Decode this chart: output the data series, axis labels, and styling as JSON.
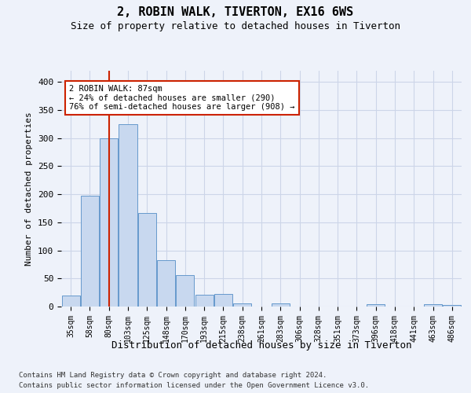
{
  "title1": "2, ROBIN WALK, TIVERTON, EX16 6WS",
  "title2": "Size of property relative to detached houses in Tiverton",
  "xlabel": "Distribution of detached houses by size in Tiverton",
  "ylabel": "Number of detached properties",
  "footnote1": "Contains HM Land Registry data © Crown copyright and database right 2024.",
  "footnote2": "Contains public sector information licensed under the Open Government Licence v3.0.",
  "categories": [
    "35sqm",
    "58sqm",
    "80sqm",
    "103sqm",
    "125sqm",
    "148sqm",
    "170sqm",
    "193sqm",
    "215sqm",
    "238sqm",
    "261sqm",
    "283sqm",
    "306sqm",
    "328sqm",
    "351sqm",
    "373sqm",
    "396sqm",
    "418sqm",
    "441sqm",
    "463sqm",
    "486sqm"
  ],
  "values": [
    20,
    197,
    300,
    325,
    167,
    82,
    56,
    21,
    22,
    6,
    0,
    6,
    0,
    0,
    0,
    0,
    4,
    0,
    0,
    4,
    3
  ],
  "bar_color": "#c8d8ef",
  "bar_edge_color": "#6699cc",
  "vline_color": "#cc2200",
  "annotation_text": "2 ROBIN WALK: 87sqm\n← 24% of detached houses are smaller (290)\n76% of semi-detached houses are larger (908) →",
  "annotation_box_color": "white",
  "annotation_box_edge": "#cc2200",
  "ylim": [
    0,
    420
  ],
  "yticks": [
    0,
    50,
    100,
    150,
    200,
    250,
    300,
    350,
    400
  ],
  "grid_color": "#ccd5e8",
  "bg_color": "#eef2fa",
  "title1_fontsize": 11,
  "title2_fontsize": 9,
  "tick_fontsize": 7,
  "ylabel_fontsize": 8,
  "xlabel_fontsize": 9,
  "footnote_fontsize": 6.5
}
